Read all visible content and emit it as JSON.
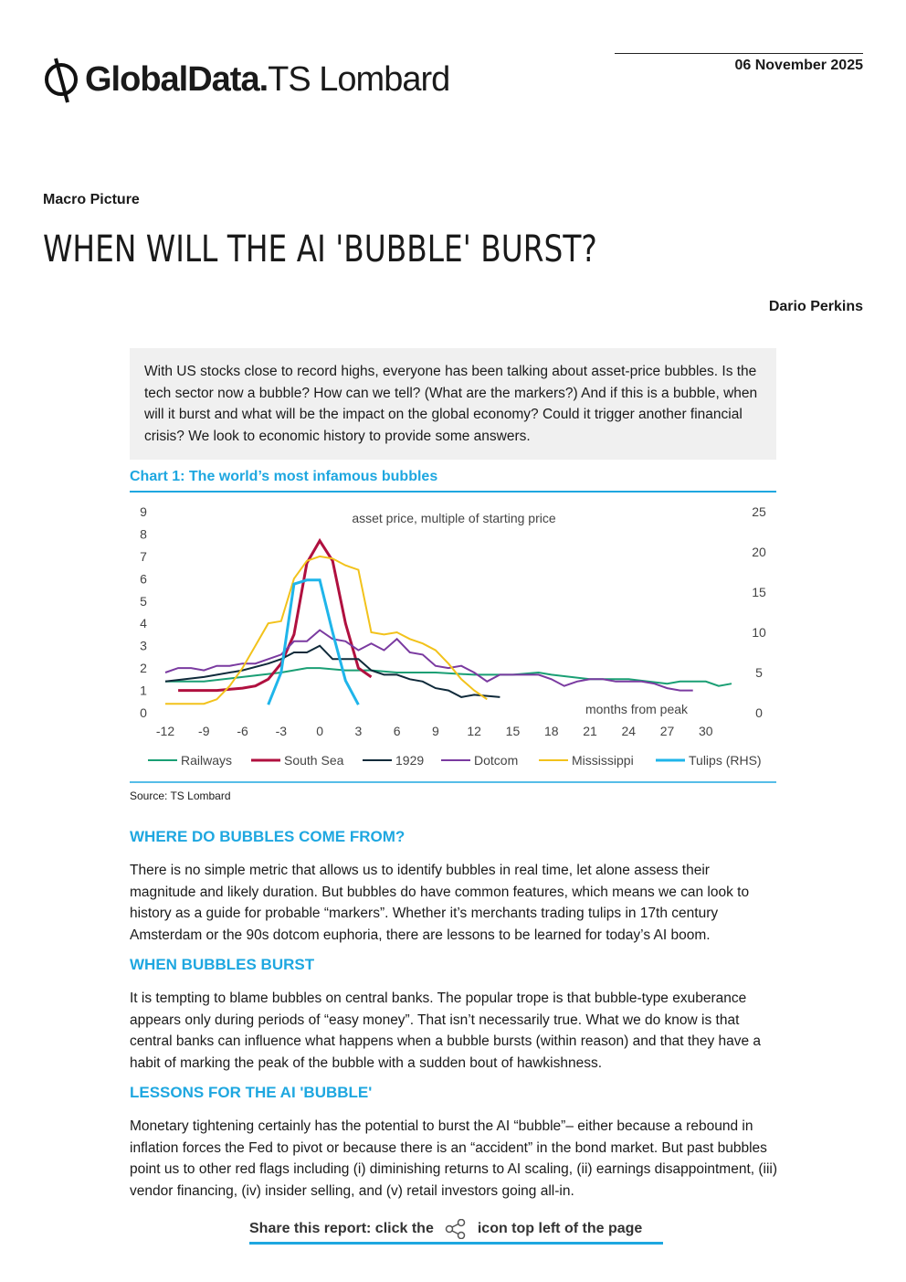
{
  "header": {
    "logo_main": "GlobalData.",
    "logo_sub": "TS Lombard",
    "date": "06 November 2025",
    "section": "Macro Picture",
    "title": "WHEN WILL THE AI 'BUBBLE' BURST?",
    "author": "Dario Perkins"
  },
  "summary": "With US stocks close to record highs, everyone has been talking about asset-price bubbles. Is the tech sector now a bubble? How can we tell? (What are the markers?) And if this is a bubble, when will it burst and what will be the impact on the global economy? Could it trigger another financial crisis? We look to economic history to provide some answers.",
  "chart_data": {
    "type": "line",
    "title": "Chart 1: The world’s most infamous bubbles",
    "annotations": [
      "asset price, multiple of starting price",
      "months from peak"
    ],
    "xlim": [
      -12,
      32
    ],
    "xticks": [
      -12,
      -9,
      -6,
      -3,
      0,
      3,
      6,
      9,
      12,
      15,
      18,
      21,
      24,
      27,
      30
    ],
    "ylim": [
      0,
      9
    ],
    "yticks": [
      0,
      1,
      2,
      3,
      4,
      5,
      6,
      7,
      8,
      9
    ],
    "y2lim": [
      0,
      25
    ],
    "y2ticks": [
      0,
      5,
      10,
      15,
      20,
      25
    ],
    "legend": "bottom",
    "grid": false,
    "series": [
      {
        "name": "Railways",
        "color": "#1a9f74",
        "x": [
          -12,
          -9,
          -6,
          -3,
          -1,
          0,
          2,
          4,
          6,
          9,
          12,
          15,
          17,
          18,
          21,
          24,
          27,
          28,
          30,
          31,
          32
        ],
        "values": [
          1.4,
          1.4,
          1.6,
          1.8,
          2.0,
          2.0,
          1.9,
          1.9,
          1.8,
          1.8,
          1.7,
          1.7,
          1.8,
          1.7,
          1.5,
          1.5,
          1.3,
          1.4,
          1.4,
          1.2,
          1.3
        ]
      },
      {
        "name": "South Sea",
        "color": "#b0103f",
        "x": [
          -11,
          -8,
          -6,
          -5,
          -4,
          -3,
          -2,
          -1,
          0,
          1,
          2,
          3,
          4
        ],
        "values": [
          1.0,
          1.0,
          1.1,
          1.2,
          1.5,
          2.2,
          3.5,
          6.7,
          7.7,
          6.8,
          4.0,
          2.0,
          1.6
        ]
      },
      {
        "name": "1929",
        "color": "#0f2a3a",
        "x": [
          -12,
          -9,
          -6,
          -4,
          -3,
          -2,
          -1,
          0,
          1,
          2,
          3,
          4,
          5,
          6,
          7,
          8,
          9,
          10,
          11,
          12,
          14
        ],
        "values": [
          1.4,
          1.6,
          1.9,
          2.2,
          2.4,
          2.7,
          2.7,
          3.0,
          2.4,
          2.4,
          2.4,
          1.9,
          1.7,
          1.7,
          1.5,
          1.4,
          1.1,
          1.0,
          0.7,
          0.8,
          0.7
        ]
      },
      {
        "name": "Dotcom",
        "color": "#7a3aa0",
        "x": [
          -12,
          -11,
          -10,
          -9,
          -8,
          -7,
          -6,
          -5,
          -4,
          -3,
          -2,
          -1,
          0,
          1,
          2,
          3,
          4,
          5,
          6,
          7,
          8,
          9,
          10,
          11,
          12,
          13,
          14,
          16,
          17,
          18,
          19,
          20,
          21,
          22,
          23,
          24,
          25,
          26,
          27,
          28,
          29
        ],
        "values": [
          1.8,
          2.0,
          2.0,
          1.9,
          2.1,
          2.1,
          2.2,
          2.2,
          2.4,
          2.6,
          3.2,
          3.2,
          3.7,
          3.3,
          3.2,
          2.8,
          3.1,
          2.8,
          3.3,
          2.7,
          2.6,
          2.1,
          2.0,
          2.1,
          1.8,
          1.4,
          1.7,
          1.7,
          1.7,
          1.5,
          1.2,
          1.4,
          1.5,
          1.5,
          1.4,
          1.4,
          1.4,
          1.3,
          1.1,
          1.0,
          1.0
        ]
      },
      {
        "name": "Mississippi",
        "color": "#f2c21b",
        "x": [
          -12,
          -10,
          -9,
          -8,
          -7,
          -6,
          -5,
          -4,
          -3,
          -2,
          -1,
          0,
          1,
          2,
          3,
          4,
          5,
          6,
          7,
          8,
          9,
          10,
          11,
          12,
          13
        ],
        "values": [
          0.4,
          0.4,
          0.4,
          0.6,
          1.2,
          2.0,
          3.0,
          4.0,
          4.1,
          6.0,
          6.8,
          7.0,
          6.9,
          6.6,
          6.4,
          3.6,
          3.5,
          3.6,
          3.3,
          3.1,
          2.8,
          2.2,
          1.5,
          1.0,
          0.6
        ]
      },
      {
        "name": "Tulips (RHS)",
        "color": "#1fb5ea",
        "axis": "y2",
        "x": [
          -4,
          -3,
          -2,
          -1,
          0,
          1,
          2,
          3
        ],
        "values": [
          1,
          5,
          16,
          16.5,
          16.5,
          10,
          4,
          1
        ]
      }
    ]
  },
  "source": "Source: TS Lombard",
  "sections": [
    {
      "heading": "WHERE DO BUBBLES COME FROM?",
      "text": "There is no simple metric that allows us to identify bubbles in real time, let alone assess their magnitude and likely duration. But bubbles do have common features, which means we can look to history as a guide for probable “markers”. Whether it’s merchants trading tulips in 17th century Amsterdam or the 90s dotcom euphoria, there are lessons to be learned for today’s AI boom."
    },
    {
      "heading": "WHEN BUBBLES BURST",
      "text": "It is tempting to blame bubbles on central banks. The popular trope is that bubble-type exuberance appears only during  periods of “easy money”. That isn’t necessarily true. What we do know is that central banks can influence what happens when a bubble bursts (within reason) and that they have a habit of marking the peak of the bubble with a sudden bout of hawkishness."
    },
    {
      "heading": "LESSONS FOR THE AI 'BUBBLE'",
      "text": "Monetary tightening certainly has the potential to burst the AI “bubble”– either because a rebound in inflation forces the Fed to pivot or because there is an “accident” in the bond market. But past bubbles point us to other red flags including (i) diminishing returns to AI scaling, (ii) earnings disappointment, (iii) vendor financing, (iv) insider selling, and (v) retail investors going all-in."
    }
  ],
  "footer": {
    "share_before": "Share this report: click the",
    "share_after": "icon top left of the page"
  }
}
